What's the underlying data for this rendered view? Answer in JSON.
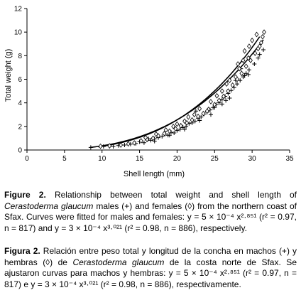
{
  "chart_data": {
    "type": "scatter",
    "xlabel": "Shell length (mm)",
    "ylabel": "Total weight (g)",
    "xlim": [
      0,
      35
    ],
    "ylim": [
      0,
      12
    ],
    "xticks": [
      0,
      5,
      10,
      15,
      20,
      25,
      30,
      35
    ],
    "yticks": [
      0,
      2,
      4,
      6,
      8,
      10,
      12
    ],
    "series": [
      {
        "name": "males (+)",
        "marker": "+",
        "fit": {
          "a": 0.0005,
          "b": 2.851,
          "x_range": [
            8.5,
            31.5
          ]
        },
        "points": [
          [
            8.5,
            0.22
          ],
          [
            10.2,
            0.3
          ],
          [
            11.5,
            0.3
          ],
          [
            12.2,
            0.38
          ],
          [
            13.0,
            0.42
          ],
          [
            13.8,
            0.5
          ],
          [
            14.5,
            0.55
          ],
          [
            15.0,
            0.7
          ],
          [
            15.6,
            0.62
          ],
          [
            16.0,
            0.85
          ],
          [
            16.5,
            0.82
          ],
          [
            17.0,
            0.95
          ],
          [
            17.5,
            1.05
          ],
          [
            18.0,
            1.15
          ],
          [
            18.4,
            1.35
          ],
          [
            18.8,
            1.25
          ],
          [
            19.2,
            1.5
          ],
          [
            19.6,
            1.45
          ],
          [
            20.0,
            1.65
          ],
          [
            20.4,
            1.75
          ],
          [
            20.8,
            1.9
          ],
          [
            21.2,
            2.0
          ],
          [
            21.6,
            2.25
          ],
          [
            22.0,
            2.3
          ],
          [
            22.4,
            2.45
          ],
          [
            22.8,
            2.7
          ],
          [
            23.2,
            2.8
          ],
          [
            23.6,
            3.05
          ],
          [
            24.0,
            3.2
          ],
          [
            24.4,
            3.4
          ],
          [
            24.8,
            3.6
          ],
          [
            25.2,
            3.85
          ],
          [
            25.6,
            4.0
          ],
          [
            26.0,
            4.3
          ],
          [
            26.4,
            4.55
          ],
          [
            26.8,
            4.8
          ],
          [
            27.2,
            5.05
          ],
          [
            27.6,
            5.3
          ],
          [
            28.0,
            5.6
          ],
          [
            28.4,
            5.9
          ],
          [
            28.8,
            6.2
          ],
          [
            29.2,
            6.5
          ],
          [
            29.6,
            6.8
          ],
          [
            29.0,
            6.3
          ],
          [
            22.5,
            3.3
          ],
          [
            21.0,
            1.75
          ],
          [
            25.0,
            3.6
          ],
          [
            27.0,
            4.4
          ],
          [
            23.0,
            2.5
          ],
          [
            19.0,
            1.25
          ],
          [
            17.0,
            0.75
          ],
          [
            26.5,
            4.2
          ],
          [
            24.5,
            3.0
          ],
          [
            28.5,
            6.9
          ],
          [
            16.2,
            0.95
          ],
          [
            20.5,
            2.1
          ],
          [
            30.3,
            7.3
          ],
          [
            31.0,
            8.1
          ],
          [
            31.5,
            8.5
          ],
          [
            30.8,
            7.8
          ],
          [
            27.8,
            5.9
          ],
          [
            29.5,
            6.4
          ],
          [
            26.0,
            3.9
          ]
        ]
      },
      {
        "name": "females (◊)",
        "marker": "diamond",
        "fit": {
          "a": 0.0003,
          "b": 3.021,
          "x_range": [
            9.5,
            31.0
          ]
        },
        "points": [
          [
            9.8,
            0.32
          ],
          [
            11.0,
            0.35
          ],
          [
            12.5,
            0.42
          ],
          [
            13.5,
            0.52
          ],
          [
            14.3,
            0.6
          ],
          [
            15.2,
            0.78
          ],
          [
            16.0,
            0.9
          ],
          [
            16.8,
            1.0
          ],
          [
            17.5,
            1.2
          ],
          [
            18.3,
            1.4
          ],
          [
            19.0,
            1.6
          ],
          [
            19.8,
            1.8
          ],
          [
            20.5,
            2.05
          ],
          [
            21.3,
            2.3
          ],
          [
            22.0,
            2.55
          ],
          [
            22.8,
            2.85
          ],
          [
            23.5,
            3.1
          ],
          [
            24.2,
            3.45
          ],
          [
            25.0,
            3.85
          ],
          [
            25.6,
            4.2
          ],
          [
            26.2,
            4.55
          ],
          [
            26.8,
            5.0
          ],
          [
            27.4,
            5.5
          ],
          [
            28.0,
            6.0
          ],
          [
            28.6,
            6.5
          ],
          [
            29.2,
            7.1
          ],
          [
            29.8,
            7.6
          ],
          [
            30.4,
            8.2
          ],
          [
            31.0,
            8.8
          ],
          [
            31.4,
            9.6
          ],
          [
            30.8,
            8.6
          ],
          [
            29.5,
            7.8
          ],
          [
            28.3,
            6.9
          ],
          [
            27.0,
            5.9
          ],
          [
            26.0,
            5.0
          ],
          [
            24.5,
            4.1
          ],
          [
            23.0,
            3.5
          ],
          [
            21.5,
            2.8
          ],
          [
            20.0,
            2.2
          ],
          [
            18.5,
            1.7
          ],
          [
            30.0,
            9.3
          ],
          [
            31.6,
            10.0
          ],
          [
            28.8,
            7.6
          ],
          [
            27.8,
            6.2
          ],
          [
            25.3,
            4.6
          ],
          [
            22.3,
            3.0
          ],
          [
            19.5,
            2.0
          ],
          [
            17.2,
            1.35
          ],
          [
            29.0,
            8.4
          ],
          [
            30.6,
            9.8
          ],
          [
            31.2,
            9.1
          ],
          [
            26.6,
            5.6
          ],
          [
            24.0,
            3.3
          ],
          [
            21.0,
            2.45
          ],
          [
            15.8,
            1.05
          ],
          [
            28.1,
            7.3
          ],
          [
            29.6,
            8.8
          ]
        ]
      }
    ]
  },
  "caption": {
    "en_lead": "Figure 2.",
    "en_text_1": " Relationship between total weight and shell length of ",
    "en_species": "Cerastoderma glaucum",
    "en_text_2": " males (+) and females (◊) from the northern coast of Sfax. Curves were fitted for males and females: y = 5 × 10⁻⁴ x²·⁸⁵¹ (r² = 0.97, n = 817) and y = 3 × 10⁻⁴ x³·⁰²¹ (r² = 0.98, n = 886), respectively.",
    "es_lead": "Figura 2.",
    "es_text_1": " Relación entre peso total y longitud de la concha en machos (+) y hembras (◊) de ",
    "es_species": "Cerastoderma glaucum",
    "es_text_2": " de la costa norte de Sfax. Se ajustaron curvas para machos y hembras: y = 5 × 10⁻⁴ x²·⁸⁵¹ (r² = 0.97, n = 817) e y = 3 × 10⁻⁴ x³·⁰²¹ (r² = 0.98, n = 886), respectivamente."
  }
}
